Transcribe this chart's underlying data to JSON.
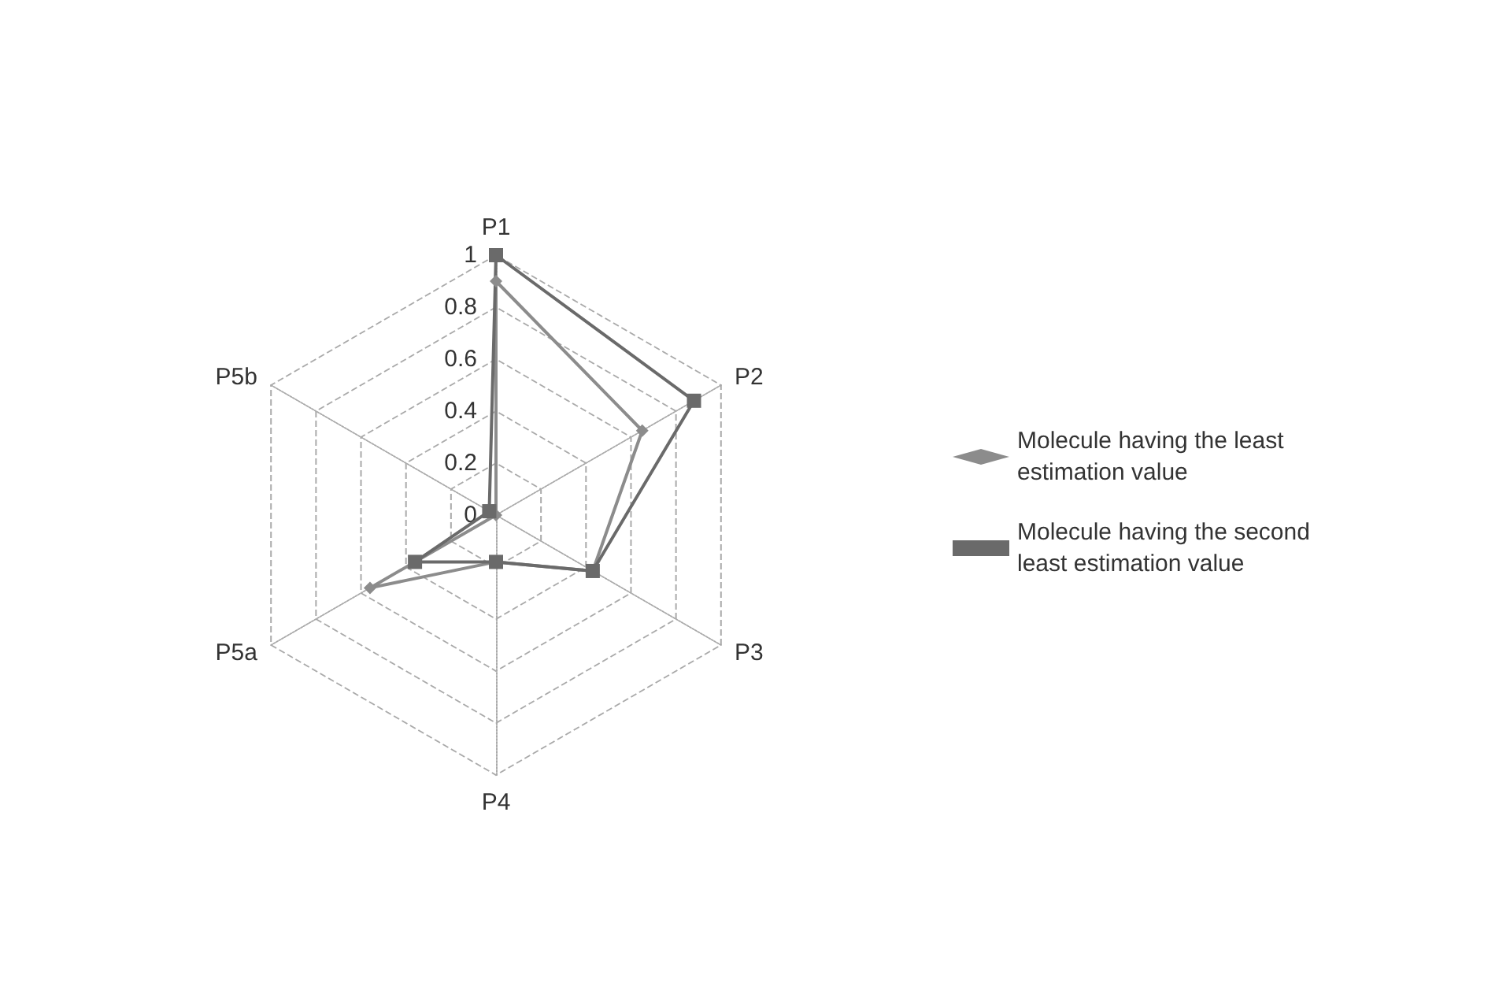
{
  "chart_data": {
    "type": "radar",
    "categories": [
      "P1",
      "P2",
      "P3",
      "P4",
      "P5a",
      "P5b"
    ],
    "series": [
      {
        "name": "Molecule having the least estimation value",
        "color": "#8c8c8c",
        "marker": "diamond",
        "values": [
          0.9,
          0.65,
          0.43,
          0.18,
          0.56,
          null
        ]
      },
      {
        "name": "Molecule having the second least estimation value",
        "color": "#6a6a6a",
        "marker": "square",
        "values": [
          1.0,
          0.88,
          0.43,
          0.18,
          0.36,
          0.03
        ]
      }
    ],
    "ylim": [
      0,
      1
    ],
    "yticks": [
      0,
      0.2,
      0.4,
      0.6,
      0.8,
      1
    ],
    "grid": true,
    "legend": "right",
    "line_style": "solid"
  }
}
